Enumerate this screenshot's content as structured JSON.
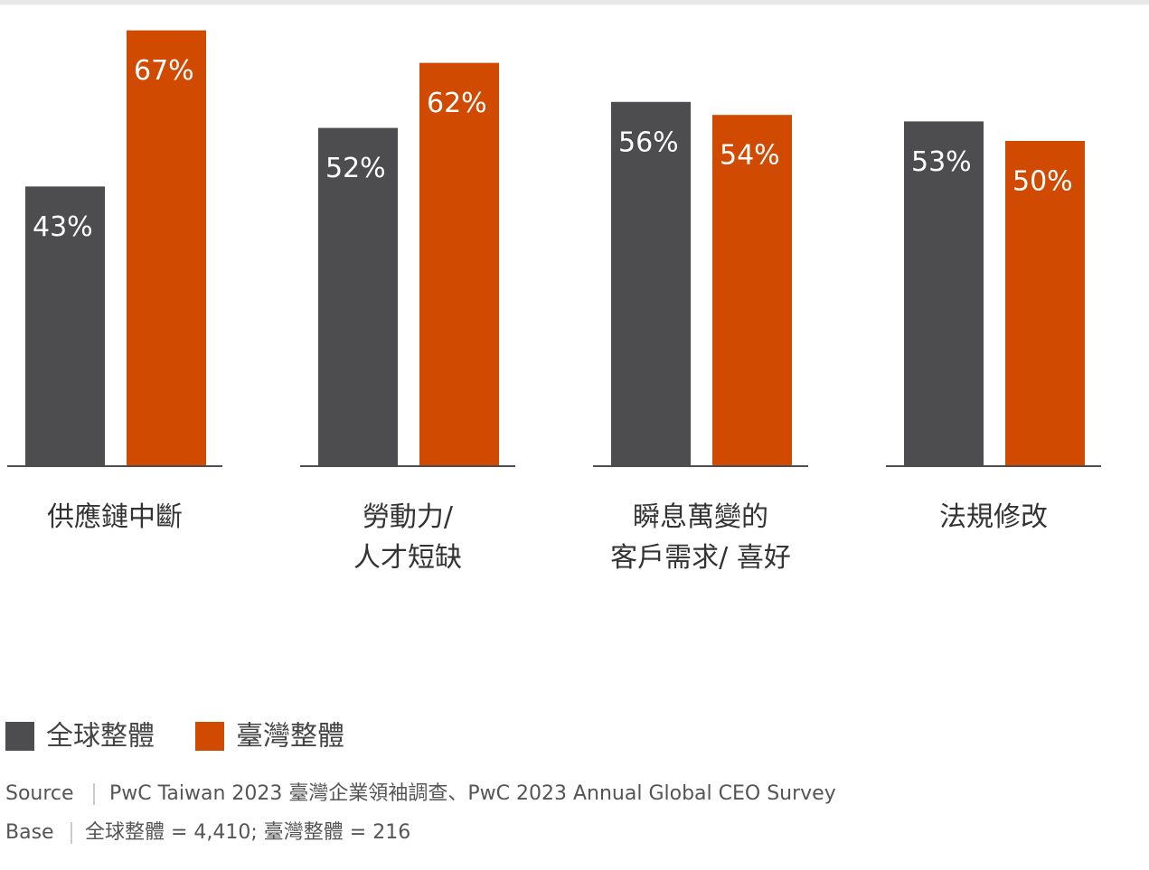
{
  "chart_data": {
    "type": "bar",
    "categories": [
      "供應鏈中斷",
      "勞動力/\n人才短缺",
      "瞬息萬變的\n客戶需求/ 喜好",
      "法規修改"
    ],
    "series": [
      {
        "name": "全球整體",
        "color": "#4d4d4f",
        "values": [
          43,
          52,
          56,
          53
        ],
        "value_labels": [
          "43%",
          "52%",
          "56%",
          "53%"
        ]
      },
      {
        "name": "臺灣整體",
        "color": "#d04a02",
        "values": [
          67,
          62,
          54,
          50
        ],
        "value_labels": [
          "67%",
          "62%",
          "54%",
          "50%"
        ]
      }
    ],
    "source_label": "Source",
    "source": "PwC Taiwan 2023 臺灣企業領袖調查、PwC 2023 Annual Global CEO Survey",
    "base_label": "Base",
    "base": "全球整體 = 4,410; 臺灣整體 = 216"
  }
}
